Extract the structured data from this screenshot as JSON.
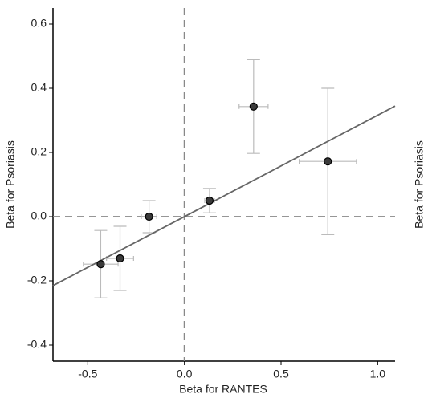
{
  "chart_data": {
    "type": "scatter",
    "x_label": "Beta for RANTES",
    "y_label": "Beta for Psoriasis",
    "y2_label": "Beta for Psoriasis",
    "series": [
      {
        "color": "#3a3a3a",
        "errorbar_color": "#bbbbbb",
        "x": [
          -0.433,
          -0.333,
          -0.183,
          0.13,
          0.358,
          0.742
        ],
        "y": [
          -0.148,
          -0.13,
          0.0,
          0.05,
          0.343,
          0.172
        ],
        "xerr": [
          0.09,
          0.07,
          0.04,
          0.025,
          0.075,
          0.148
        ],
        "yerr": [
          0.105,
          0.1,
          0.05,
          0.038,
          0.146,
          0.228
        ]
      }
    ],
    "fit": {
      "slope": 0.316,
      "intercept": 0,
      "color": "#666666"
    },
    "zero_lines": true,
    "xlim": [
      -0.68,
      1.09
    ],
    "ylim": [
      -0.45,
      0.65
    ],
    "xticks": [
      -0.5,
      {
        "value": 0,
        "label": "0.0"
      },
      0.5,
      {
        "value": 1,
        "label": "1.0"
      }
    ],
    "yticks": [
      -0.4,
      -0.2,
      {
        "value": 0,
        "label": "0.0"
      },
      0.2,
      0.4,
      0.6
    ]
  }
}
